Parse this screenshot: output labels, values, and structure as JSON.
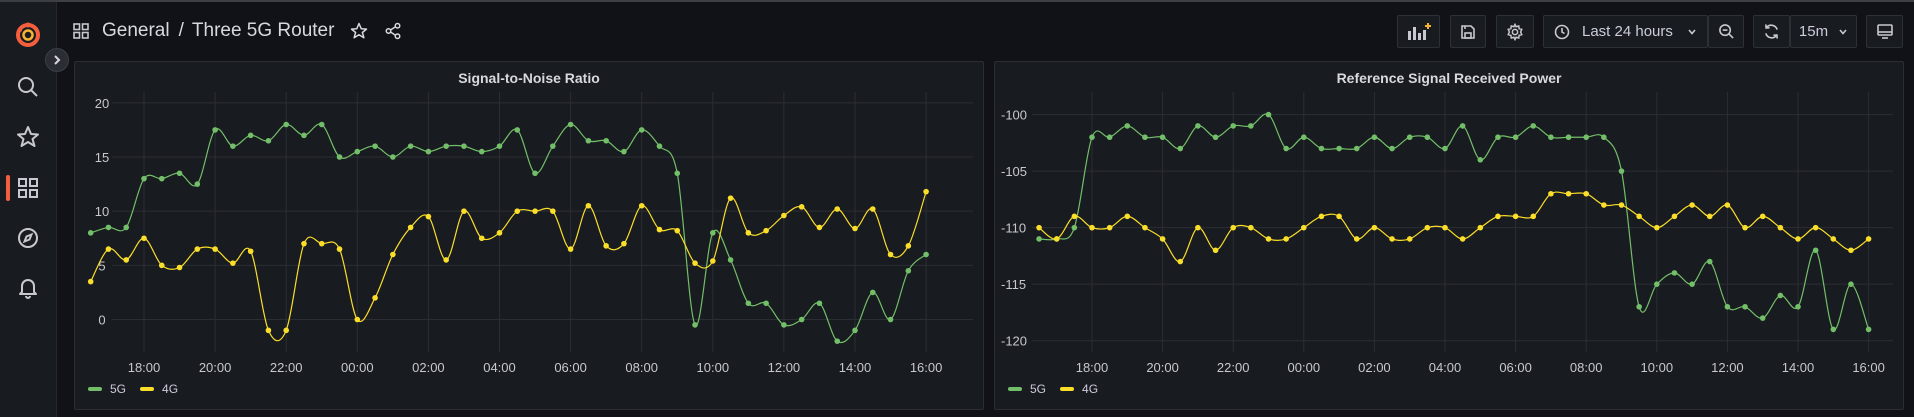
{
  "breadcrumb": {
    "folder": "General",
    "separator": "/",
    "title": "Three 5G Router"
  },
  "toolbar": {
    "time_range": "Last 24 hours",
    "refresh_interval": "15m"
  },
  "colors": {
    "accent": "#f55f3e",
    "series_5g": "#73bf69",
    "series_4g": "#fade2a"
  },
  "panels": [
    {
      "title": "Signal-to-Noise Ratio",
      "legend": [
        "5G",
        "4G"
      ],
      "chart_data": {
        "type": "line",
        "x_start_hour": 16.5,
        "x_end_hour": 40.0,
        "ylim": [
          -3,
          21
        ],
        "yticks": [
          0,
          5,
          10,
          15,
          20
        ],
        "xticks": [
          "18:00",
          "20:00",
          "22:00",
          "00:00",
          "02:00",
          "04:00",
          "06:00",
          "08:00",
          "10:00",
          "12:00",
          "14:00",
          "16:00"
        ],
        "series": [
          {
            "name": "5G",
            "values": [
              8,
              8.5,
              8.5,
              13,
              13,
              13.5,
              12.5,
              17.5,
              16,
              17,
              16.5,
              18,
              17,
              18,
              15,
              15.5,
              16,
              15,
              16,
              15.5,
              16,
              16,
              15.5,
              16,
              17.5,
              13.5,
              16,
              18,
              16.5,
              16.5,
              15.5,
              17.5,
              16,
              13.5,
              -0.5,
              8,
              5.5,
              1.5,
              1.5,
              -0.5,
              0,
              1.5,
              -2,
              -1,
              2.5,
              0,
              4.5,
              6
            ]
          },
          {
            "name": "4G",
            "values": [
              3.5,
              6.5,
              5.5,
              7.5,
              5,
              4.8,
              6.5,
              6.5,
              5.2,
              6.3,
              -1,
              -1,
              7,
              7,
              6.5,
              0,
              2,
              6,
              8.5,
              9.5,
              5.5,
              10,
              7.5,
              8,
              10,
              10,
              10,
              6.5,
              10.5,
              6.8,
              7,
              10.5,
              8.3,
              8.2,
              5.2,
              5.4,
              11.2,
              8,
              8.2,
              9.6,
              10.4,
              8.5,
              10.2,
              8.4,
              10.2,
              6,
              6.8,
              11.8
            ]
          }
        ]
      }
    },
    {
      "title": "Reference Signal Received Power",
      "legend": [
        "5G",
        "4G"
      ],
      "chart_data": {
        "type": "line",
        "x_start_hour": 16.5,
        "x_end_hour": 40.0,
        "ylim": [
          -121,
          -98
        ],
        "yticks": [
          -100,
          -105,
          -110,
          -115,
          -120
        ],
        "xticks": [
          "18:00",
          "20:00",
          "22:00",
          "00:00",
          "02:00",
          "04:00",
          "06:00",
          "08:00",
          "10:00",
          "12:00",
          "14:00",
          "16:00"
        ],
        "series": [
          {
            "name": "5G",
            "values": [
              -111,
              -111,
              -110,
              -102,
              -102,
              -101,
              -102,
              -102,
              -103,
              -101,
              -102,
              -101,
              -101,
              -100,
              -103,
              -102,
              -103,
              -103,
              -103,
              -102,
              -103,
              -102,
              -102,
              -103,
              -101,
              -104,
              -102,
              -102,
              -101,
              -102,
              -102,
              -102,
              -102,
              -105,
              -117,
              -115,
              -114,
              -115,
              -113,
              -117,
              -117,
              -118,
              -116,
              -117,
              -112,
              -119,
              -115,
              -119
            ]
          },
          {
            "name": "4G",
            "values": [
              -110,
              -111,
              -109,
              -110,
              -110,
              -109,
              -110,
              -111,
              -113,
              -110,
              -112,
              -110,
              -110,
              -111,
              -111,
              -110,
              -109,
              -109,
              -111,
              -110,
              -111,
              -111,
              -110,
              -110,
              -111,
              -110,
              -109,
              -109,
              -109,
              -107,
              -107,
              -107,
              -108,
              -108,
              -109,
              -110,
              -109,
              -108,
              -109,
              -108,
              -110,
              -109,
              -110,
              -111,
              -110,
              -111,
              -112,
              -111
            ]
          }
        ]
      }
    }
  ]
}
